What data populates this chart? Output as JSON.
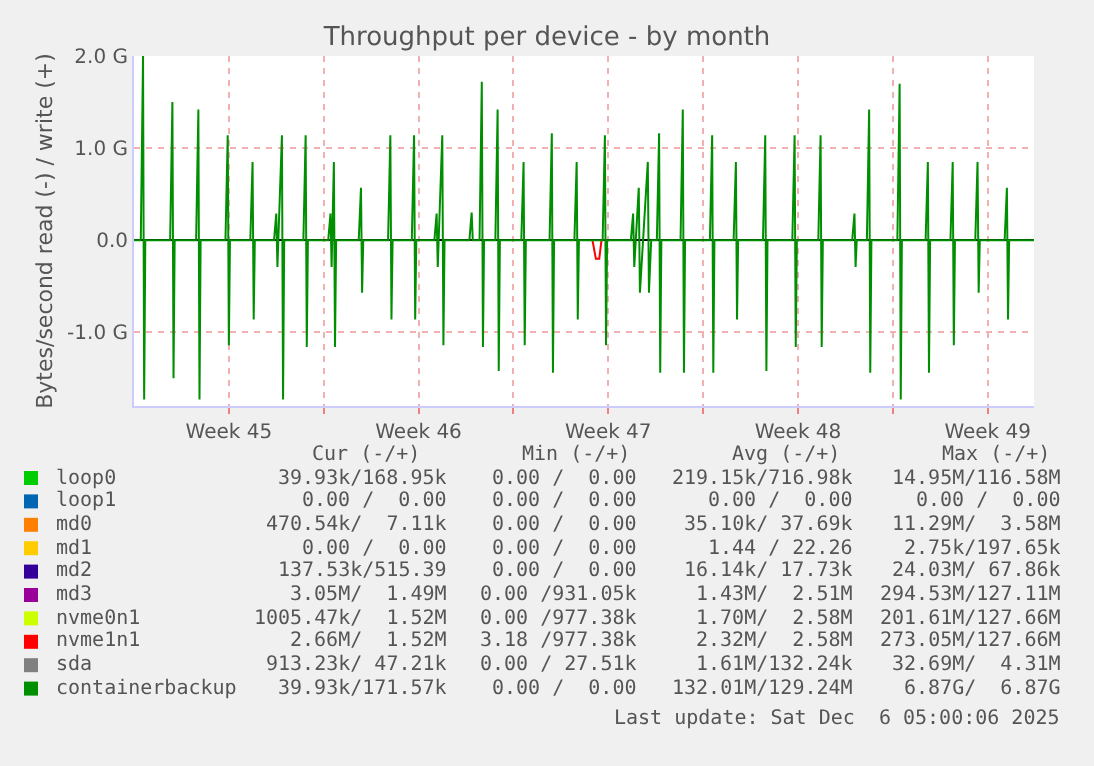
{
  "chart_data": {
    "type": "line",
    "title": "Throughput per device - by month",
    "ylabel": "Bytes/second read (-) / write (+)",
    "xlim": [
      "2025-11-03T00:00",
      "2025-12-06T05:00"
    ],
    "xticks": [
      {
        "value": "2025-11-06T12:00",
        "label": "Week 45"
      },
      {
        "value": "2025-11-10T00:00",
        "label": null
      },
      {
        "value": "2025-11-13T12:00",
        "label": "Week 46"
      },
      {
        "value": "2025-11-17T00:00",
        "label": null
      },
      {
        "value": "2025-11-20T12:00",
        "label": "Week 47"
      },
      {
        "value": "2025-11-24T00:00",
        "label": null
      },
      {
        "value": "2025-11-27T12:00",
        "label": "Week 48"
      },
      {
        "value": "2025-12-01T00:00",
        "label": null
      },
      {
        "value": "2025-12-04T12:00",
        "label": "Week 49"
      }
    ],
    "ylim": [
      -1.8,
      2.0
    ],
    "yticks": [
      {
        "value": -1,
        "label": "-1.0 G"
      },
      {
        "value": 0,
        "label": "0.0"
      },
      {
        "value": 1,
        "label": "1.0 G"
      },
      {
        "value": 2,
        "label": "2.0 G"
      }
    ],
    "grid": true,
    "legend": "bottom",
    "series": [
      {
        "name": "loop0",
        "color": "#00cc00"
      },
      {
        "name": "loop1",
        "color": "#0066b3"
      },
      {
        "name": "md0",
        "color": "#ff8000"
      },
      {
        "name": "md1",
        "color": "#ffcc00"
      },
      {
        "name": "md2",
        "color": "#330099"
      },
      {
        "name": "md3",
        "color": "#990099"
      },
      {
        "name": "nvme0n1",
        "color": "#ccff00"
      },
      {
        "name": "nvme1n1",
        "color": "#ff0000",
        "x": [
          "2025-11-19T22:00",
          "2025-11-20T01:00",
          "2025-11-20T04:00",
          "2025-11-20T06:00"
        ],
        "values": [
          0,
          -0.2,
          -0.2,
          0
        ]
      },
      {
        "name": "sda",
        "color": "#808080"
      },
      {
        "name": "containerbackup",
        "color": "#008f00",
        "x": [
          "2025-11-03T00:00",
          "2025-11-03T06:00",
          "2025-11-03T08:00",
          "2025-11-03T09:00",
          "2025-11-03T10:00",
          "2025-11-04T08:00",
          "2025-11-04T10:00",
          "2025-11-04T11:00",
          "2025-11-04T12:00",
          "2025-11-05T07:00",
          "2025-11-05T09:00",
          "2025-11-05T10:00",
          "2025-11-05T11:00",
          "2025-11-06T09:00",
          "2025-11-06T11:00",
          "2025-11-06T12:00",
          "2025-11-06T13:00",
          "2025-11-07T07:00",
          "2025-11-07T09:00",
          "2025-11-07T10:00",
          "2025-11-07T11:00",
          "2025-11-08T04:00",
          "2025-11-08T06:00",
          "2025-11-08T07:00",
          "2025-11-08T11:00",
          "2025-11-08T12:00",
          "2025-11-08T13:00",
          "2025-11-09T06:00",
          "2025-11-09T08:00",
          "2025-11-09T09:00",
          "2025-11-09T10:00",
          "2025-11-10T04:00",
          "2025-11-10T06:00",
          "2025-11-10T07:00",
          "2025-11-10T09:00",
          "2025-11-10T10:00",
          "2025-11-10T11:00",
          "2025-11-11T07:00",
          "2025-11-11T09:00",
          "2025-11-11T10:00",
          "2025-11-11T11:00",
          "2025-11-12T09:00",
          "2025-11-12T11:00",
          "2025-11-12T12:00",
          "2025-11-12T13:00",
          "2025-11-13T06:00",
          "2025-11-13T08:00",
          "2025-11-13T09:00",
          "2025-11-13T10:00",
          "2025-11-14T02:00",
          "2025-11-14T04:00",
          "2025-11-14T05:00",
          "2025-11-14T09:00",
          "2025-11-14T10:00",
          "2025-11-14T11:00",
          "2025-11-15T09:00",
          "2025-11-15T11:00",
          "2025-11-15T12:00",
          "2025-11-15T18:00",
          "2025-11-15T20:00",
          "2025-11-15T21:00",
          "2025-11-15T22:00",
          "2025-11-16T08:00",
          "2025-11-16T10:00",
          "2025-11-16T11:00",
          "2025-11-16T12:00",
          "2025-11-17T07:00",
          "2025-11-17T09:00",
          "2025-11-17T10:00",
          "2025-11-17T11:00",
          "2025-11-18T08:00",
          "2025-11-18T10:00",
          "2025-11-18T11:00",
          "2025-11-18T12:00",
          "2025-11-19T06:00",
          "2025-11-19T08:00",
          "2025-11-19T09:00",
          "2025-11-19T10:00",
          "2025-11-20T07:00",
          "2025-11-20T09:00",
          "2025-11-20T10:00",
          "2025-11-20T11:00",
          "2025-11-21T08:00",
          "2025-11-21T10:00",
          "2025-11-21T11:00",
          "2025-11-21T15:00",
          "2025-11-21T16:00",
          "2025-11-21T23:00",
          "2025-11-22T00:00",
          "2025-11-22T02:00",
          "2025-11-22T07:00",
          "2025-11-22T09:00",
          "2025-11-22T10:00",
          "2025-11-22T11:00",
          "2025-11-23T04:00",
          "2025-11-23T06:00",
          "2025-11-23T07:00",
          "2025-11-23T08:00",
          "2025-11-24T06:00",
          "2025-11-24T08:00",
          "2025-11-24T09:00",
          "2025-11-24T10:00",
          "2025-11-25T03:00",
          "2025-11-25T05:00",
          "2025-11-25T06:00",
          "2025-11-25T07:00",
          "2025-11-26T05:00",
          "2025-11-26T07:00",
          "2025-11-26T08:00",
          "2025-11-26T09:00",
          "2025-11-27T07:00",
          "2025-11-27T09:00",
          "2025-11-27T10:00",
          "2025-11-27T11:00",
          "2025-11-28T06:00",
          "2025-11-28T08:00",
          "2025-11-28T09:00",
          "2025-11-28T10:00",
          "2025-11-29T12:00",
          "2025-11-29T14:00",
          "2025-11-29T15:00",
          "2025-11-29T16:00",
          "2025-11-30T01:00",
          "2025-11-30T03:00",
          "2025-11-30T04:00",
          "2025-11-30T05:00",
          "2025-12-01T04:00",
          "2025-12-01T06:00",
          "2025-12-01T07:00",
          "2025-12-01T08:00",
          "2025-12-02T05:00",
          "2025-12-02T07:00",
          "2025-12-02T08:00",
          "2025-12-02T09:00",
          "2025-12-03T03:00",
          "2025-12-03T05:00",
          "2025-12-03T06:00",
          "2025-12-03T07:00",
          "2025-12-04T01:00",
          "2025-12-04T03:00",
          "2025-12-04T04:00",
          "2025-12-04T05:00",
          "2025-12-05T03:00",
          "2025-12-05T05:00",
          "2025-12-05T06:00",
          "2025-12-05T07:00",
          "2025-12-06T05:00"
        ],
        "values": [
          0,
          0,
          2.0,
          -1.73,
          0,
          0,
          1.5,
          -1.5,
          0,
          0,
          1.42,
          -1.73,
          0,
          0,
          1.14,
          -1.14,
          0,
          0,
          0.85,
          -0.86,
          0,
          0,
          0.29,
          -0.29,
          1.14,
          -1.73,
          0,
          0,
          1.14,
          -1.16,
          0,
          0,
          0.29,
          -0.29,
          0.85,
          -1.16,
          0,
          0,
          0.57,
          -0.57,
          0,
          0,
          1.14,
          -0.86,
          0,
          0,
          1.14,
          -0.86,
          0,
          0,
          0.29,
          -0.29,
          1.14,
          -1.14,
          0,
          0,
          0.3,
          0,
          0,
          1.72,
          -1.16,
          0,
          0,
          1.42,
          -1.42,
          0,
          0,
          0.85,
          -1.14,
          0,
          0,
          1.16,
          -1.44,
          0,
          0,
          0.85,
          -0.86,
          0,
          0,
          1.14,
          -1.14,
          0,
          0,
          0.29,
          -0.29,
          0.57,
          -0.57,
          0.85,
          -0.57,
          0,
          0,
          1.16,
          -1.44,
          0,
          0,
          1.42,
          -1.44,
          0,
          0,
          1.14,
          -1.44,
          0,
          0,
          0.85,
          -0.86,
          0,
          0,
          1.14,
          -1.42,
          0,
          0,
          1.14,
          -1.16,
          0,
          0,
          1.14,
          -1.16,
          0,
          0,
          0.29,
          -0.29,
          0,
          0,
          1.42,
          -1.44,
          0,
          0,
          1.7,
          -1.73,
          0,
          0,
          0.85,
          -1.44,
          0,
          0,
          0.85,
          -1.14,
          0,
          0,
          0.85,
          -0.57,
          0,
          0,
          0.57,
          -0.86,
          0,
          0
        ]
      }
    ],
    "annotations": [
      "Cur (-/+)",
      "Min (-/+)",
      "Avg (-/+)",
      "Max (-/+)",
      "39.93k/168.95k",
      "0.00 /  0.00",
      "219.15k/716.98k",
      "14.95M/116.58M",
      "0.00 /  0.00",
      "0.00 /  0.00",
      "0.00 /  0.00",
      "0.00 /  0.00",
      "470.54k/  7.11k",
      "0.00 /  0.00",
      "35.10k/ 37.69k",
      "11.29M/  3.58M",
      "0.00 /  0.00",
      "0.00 /  0.00",
      "1.44 / 22.26",
      "2.75k/197.65k",
      "137.53k/515.39",
      "0.00 /  0.00",
      "16.14k/ 17.73k",
      "24.03M/ 67.86k",
      "3.05M/  1.49M",
      "0.00 /931.05k",
      "1.43M/  2.51M",
      "294.53M/127.11M",
      "1005.47k/  1.52M",
      "0.00 /977.38k",
      "1.70M/  2.58M",
      "201.61M/127.66M",
      "2.66M/  1.52M",
      "3.18 /977.38k",
      "2.32M/  2.58M",
      "273.05M/127.66M",
      "913.23k/ 47.21k",
      "0.00 / 27.51k",
      "1.61M/132.24k",
      "32.69M/  4.31M",
      "39.93k/171.57k",
      "0.00 /  0.00",
      "132.01M/129.24M",
      "6.87G/  6.87G",
      "Last update: Sat Dec  6 05:00:06 2025"
    ]
  }
}
